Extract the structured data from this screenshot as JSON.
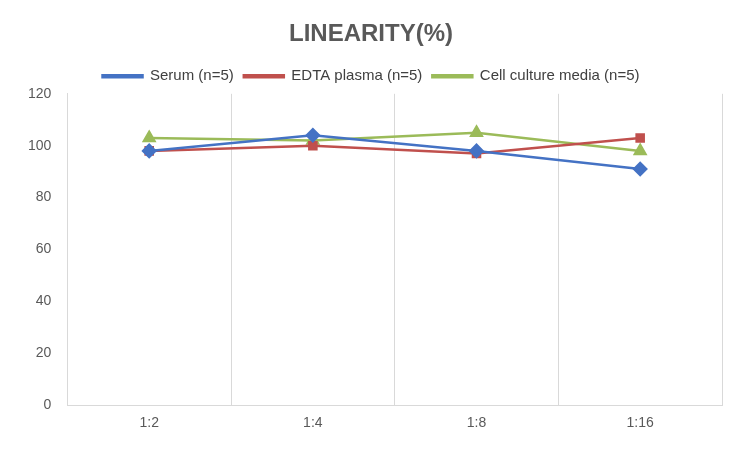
{
  "chart_data": {
    "type": "line",
    "title": "LINEARITY(%)",
    "categories": [
      "1:2",
      "1:4",
      "1:8",
      "1:16"
    ],
    "series": [
      {
        "name": "Serum (n=5)",
        "color": "#4472c4",
        "marker": "diamond",
        "values": [
          98,
          104,
          98,
          91
        ]
      },
      {
        "name": "EDTA plasma (n=5)",
        "color": "#c0504d",
        "marker": "square",
        "values": [
          98,
          100,
          97,
          103
        ]
      },
      {
        "name": "Cell culture media (n=5)",
        "color": "#9bbb59",
        "marker": "triangle",
        "values": [
          103,
          102,
          105,
          98
        ]
      }
    ],
    "ylim": [
      0,
      120
    ],
    "yticks": [
      0,
      20,
      40,
      60,
      80,
      100,
      120
    ],
    "grid": true,
    "legend": "top"
  }
}
